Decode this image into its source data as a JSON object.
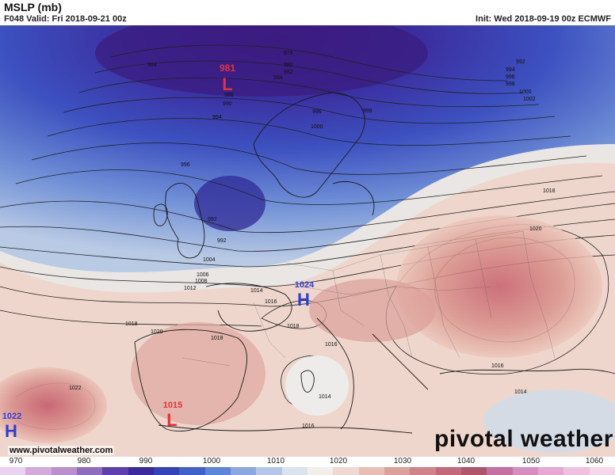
{
  "header": {
    "title": "MSLP (mb)",
    "valid": "F048 Valid: Fri 2018-09-21 00z",
    "init": "Init: Wed 2018-09-19 00z ECMWF"
  },
  "centers": [
    {
      "type": "L",
      "value": "981",
      "color": "#e8303a"
    },
    {
      "type": "H",
      "value": "1024",
      "color": "#2e3fd6"
    },
    {
      "type": "H",
      "value": "1022",
      "color": "#2e3fd6"
    },
    {
      "type": "L",
      "value": "1015",
      "color": "#e8303a"
    }
  ],
  "isobar_labels": [
    "984",
    "981",
    "986",
    "990",
    "994",
    "978",
    "980",
    "982",
    "984",
    "992",
    "994",
    "996",
    "998",
    "1000",
    "1002",
    "996",
    "998",
    "1000",
    "996",
    "992",
    "992",
    "1004",
    "1006",
    "1008",
    "1010",
    "1012",
    "1014",
    "1016",
    "1018",
    "1018",
    "1020",
    "1018",
    "1020",
    "1018",
    "1018",
    "1016",
    "1022",
    "1016",
    "1014",
    "1016",
    "1014",
    "1016",
    "1024"
  ],
  "branding": {
    "url": "www.pivotalweather.com",
    "brand": "pivotal weather"
  },
  "colorbar": {
    "labels": [
      "970",
      "980",
      "990",
      "1000",
      "1010",
      "1020",
      "1030",
      "1040",
      "1050",
      "1060"
    ],
    "colors": [
      "#e9d3ee",
      "#d4a9dc",
      "#b98fcc",
      "#8f6dbd",
      "#5e3fae",
      "#3a2a9c",
      "#3344b8",
      "#3f62c8",
      "#5d86d6",
      "#8aa8df",
      "#b4c7e6",
      "#dbe3ee",
      "#f2eee9",
      "#efd9d2",
      "#e8bfb5",
      "#dca19a",
      "#cf8488",
      "#c26a7a",
      "#b0566c",
      "#c470a0",
      "#d88dc0",
      "#e5a8d2",
      "#eec2de",
      "#f4d8ea"
    ],
    "accent_low": "#3a2a9c",
    "accent_high": "#cf8488"
  }
}
